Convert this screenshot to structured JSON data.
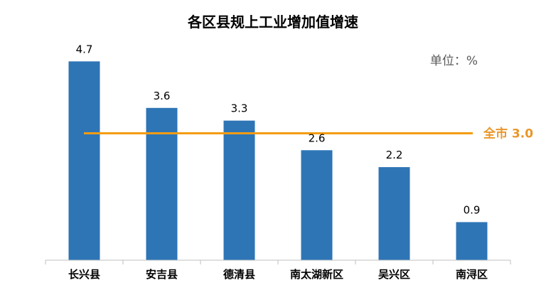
{
  "chart_data": {
    "type": "bar",
    "title": "各区县规上工业增加值增速",
    "unit_label": "单位：%",
    "categories": [
      "长兴县",
      "安吉县",
      "德清县",
      "南太湖新区",
      "吴兴区",
      "南浔区"
    ],
    "values": [
      4.7,
      3.6,
      3.3,
      2.6,
      2.2,
      0.9
    ],
    "value_labels": [
      "4.7",
      "3.6",
      "3.3",
      "2.6",
      "2.2",
      "0.9"
    ],
    "reference_line": {
      "label": "全市 3.0",
      "value": 3.0,
      "color": "#F39C12"
    },
    "bar_color": "#2E75B6",
    "ylim": [
      0,
      5
    ],
    "grid": false,
    "legend": "none"
  }
}
